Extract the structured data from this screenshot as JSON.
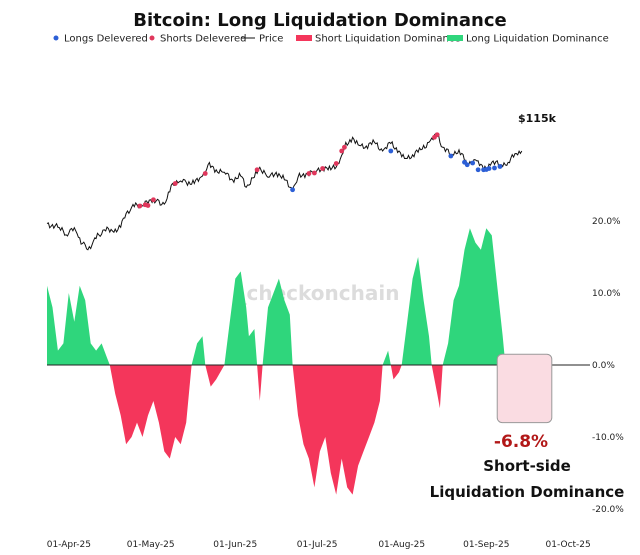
{
  "chart_data": {
    "type": "area",
    "title": "Bitcoin: Long Liquidation Dominance",
    "legend": [
      {
        "label": "Longs Delevered",
        "kind": "dot",
        "color": "#2c5fd6"
      },
      {
        "label": "Shorts Delevered",
        "kind": "dot",
        "color": "#e0375c"
      },
      {
        "label": "Price",
        "kind": "line",
        "color": "#111111"
      },
      {
        "label": "Short Liquidation Dominance",
        "kind": "bar",
        "color": "#f4365b"
      },
      {
        "label": "Long Liquidation Dominance",
        "kind": "bar",
        "color": "#2fd67c"
      }
    ],
    "legend_position": "top",
    "watermark": "_checkonchain",
    "x_axis": {
      "ticks": [
        "01-Apr-25",
        "01-May-25",
        "01-Jun-25",
        "01-Jul-25",
        "01-Aug-25",
        "01-Sep-25",
        "01-Oct-25"
      ],
      "range": [
        "2025-03-24",
        "2025-10-09"
      ]
    },
    "y_axis_right": {
      "ticks": [
        "20.0%",
        "10.0%",
        "0.0%",
        "-10.0%",
        "-20.0%"
      ],
      "range": [
        -22,
        22
      ]
    },
    "price_label": "$115k",
    "colors": {
      "long": "#2fd67c",
      "short": "#f4365b",
      "price": "#111111",
      "longs_dot": "#2c5fd6",
      "shorts_dot": "#e0375c"
    },
    "series": [
      {
        "name": "Price",
        "unit": "USD",
        "points": [
          [
            "2025-03-24",
            87000
          ],
          [
            "2025-03-28",
            85500
          ],
          [
            "2025-03-31",
            82500
          ],
          [
            "2025-04-02",
            85000
          ],
          [
            "2025-04-04",
            83000
          ],
          [
            "2025-04-06",
            79000
          ],
          [
            "2025-04-08",
            76500
          ],
          [
            "2025-04-10",
            80000
          ],
          [
            "2025-04-12",
            82500
          ],
          [
            "2025-04-14",
            84500
          ],
          [
            "2025-04-17",
            84000
          ],
          [
            "2025-04-20",
            85500
          ],
          [
            "2025-04-22",
            91000
          ],
          [
            "2025-04-24",
            93500
          ],
          [
            "2025-04-26",
            94500
          ],
          [
            "2025-04-28",
            94000
          ],
          [
            "2025-05-01",
            96500
          ],
          [
            "2025-05-03",
            96000
          ],
          [
            "2025-05-05",
            94500
          ],
          [
            "2025-05-07",
            97000
          ],
          [
            "2025-05-09",
            103000
          ],
          [
            "2025-05-12",
            104000
          ],
          [
            "2025-05-14",
            103500
          ],
          [
            "2025-05-17",
            103000
          ],
          [
            "2025-05-20",
            106000
          ],
          [
            "2025-05-22",
            110500
          ],
          [
            "2025-05-25",
            108500
          ],
          [
            "2025-05-28",
            107500
          ],
          [
            "2025-05-31",
            104500
          ],
          [
            "2025-06-03",
            106000
          ],
          [
            "2025-06-05",
            101500
          ],
          [
            "2025-06-08",
            105500
          ],
          [
            "2025-06-10",
            109500
          ],
          [
            "2025-06-13",
            105500
          ],
          [
            "2025-06-16",
            107500
          ],
          [
            "2025-06-19",
            104500
          ],
          [
            "2025-06-22",
            100500
          ],
          [
            "2025-06-24",
            105500
          ],
          [
            "2025-06-27",
            107000
          ],
          [
            "2025-06-30",
            107500
          ],
          [
            "2025-07-03",
            109500
          ],
          [
            "2025-07-06",
            108500
          ],
          [
            "2025-07-09",
            111000
          ],
          [
            "2025-07-11",
            117500
          ],
          [
            "2025-07-14",
            121500
          ],
          [
            "2025-07-16",
            118500
          ],
          [
            "2025-07-19",
            118000
          ],
          [
            "2025-07-22",
            119500
          ],
          [
            "2025-07-25",
            116000
          ],
          [
            "2025-07-28",
            119000
          ],
          [
            "2025-07-31",
            116000
          ],
          [
            "2025-08-02",
            113000
          ],
          [
            "2025-08-05",
            114500
          ],
          [
            "2025-08-08",
            116500
          ],
          [
            "2025-08-11",
            119500
          ],
          [
            "2025-08-14",
            122500
          ],
          [
            "2025-08-16",
            117500
          ],
          [
            "2025-08-19",
            114500
          ],
          [
            "2025-08-22",
            116500
          ],
          [
            "2025-08-25",
            110500
          ],
          [
            "2025-08-28",
            112500
          ],
          [
            "2025-08-31",
            108500
          ],
          [
            "2025-09-03",
            111500
          ],
          [
            "2025-09-06",
            110500
          ],
          [
            "2025-09-09",
            111500
          ],
          [
            "2025-09-12",
            115000
          ],
          [
            "2025-09-14",
            116000
          ]
        ]
      },
      {
        "name": "Long Liquidation Dominance",
        "unit": "%",
        "points": [
          [
            "2025-03-24",
            11
          ],
          [
            "2025-03-26",
            8
          ],
          [
            "2025-03-28",
            2
          ],
          [
            "2025-03-30",
            3
          ],
          [
            "2025-04-01",
            10
          ],
          [
            "2025-04-03",
            6
          ],
          [
            "2025-04-05",
            11
          ],
          [
            "2025-04-07",
            9
          ],
          [
            "2025-04-09",
            3
          ],
          [
            "2025-04-11",
            2
          ],
          [
            "2025-04-13",
            3
          ],
          [
            "2025-04-15",
            1
          ],
          [
            "2025-04-16",
            0
          ],
          [
            "2025-05-16",
            0
          ],
          [
            "2025-05-18",
            3
          ],
          [
            "2025-05-20",
            4
          ],
          [
            "2025-05-21",
            0
          ],
          [
            "2025-05-28",
            0
          ],
          [
            "2025-05-30",
            6
          ],
          [
            "2025-06-01",
            12
          ],
          [
            "2025-06-03",
            13
          ],
          [
            "2025-06-05",
            8
          ],
          [
            "2025-06-06",
            4
          ],
          [
            "2025-06-08",
            5
          ],
          [
            "2025-06-09",
            0
          ],
          [
            "2025-06-11",
            0
          ],
          [
            "2025-06-13",
            8
          ],
          [
            "2025-06-15",
            10
          ],
          [
            "2025-06-17",
            12
          ],
          [
            "2025-06-19",
            9
          ],
          [
            "2025-06-21",
            7
          ],
          [
            "2025-06-22",
            0
          ],
          [
            "2025-07-25",
            0
          ],
          [
            "2025-07-27",
            2
          ],
          [
            "2025-07-28",
            0
          ],
          [
            "2025-08-01",
            0
          ],
          [
            "2025-08-03",
            6
          ],
          [
            "2025-08-05",
            12
          ],
          [
            "2025-08-07",
            15
          ],
          [
            "2025-08-09",
            9
          ],
          [
            "2025-08-11",
            4
          ],
          [
            "2025-08-12",
            0
          ],
          [
            "2025-08-16",
            0
          ],
          [
            "2025-08-18",
            3
          ],
          [
            "2025-08-20",
            9
          ],
          [
            "2025-08-22",
            11
          ],
          [
            "2025-08-24",
            16
          ],
          [
            "2025-08-26",
            19
          ],
          [
            "2025-08-28",
            17
          ],
          [
            "2025-08-30",
            16
          ],
          [
            "2025-09-01",
            19
          ],
          [
            "2025-09-03",
            18
          ],
          [
            "2025-09-05",
            11
          ],
          [
            "2025-09-07",
            4
          ],
          [
            "2025-09-08",
            0
          ]
        ]
      },
      {
        "name": "Short Liquidation Dominance",
        "unit": "%",
        "points": [
          [
            "2025-04-16",
            0
          ],
          [
            "2025-04-18",
            -4
          ],
          [
            "2025-04-20",
            -7
          ],
          [
            "2025-04-22",
            -11
          ],
          [
            "2025-04-24",
            -10
          ],
          [
            "2025-04-26",
            -8
          ],
          [
            "2025-04-28",
            -10
          ],
          [
            "2025-04-30",
            -7
          ],
          [
            "2025-05-02",
            -5
          ],
          [
            "2025-05-04",
            -8
          ],
          [
            "2025-05-06",
            -12
          ],
          [
            "2025-05-08",
            -13
          ],
          [
            "2025-05-10",
            -10
          ],
          [
            "2025-05-12",
            -11
          ],
          [
            "2025-05-14",
            -8
          ],
          [
            "2025-05-16",
            0
          ],
          [
            "2025-05-21",
            0
          ],
          [
            "2025-05-23",
            -3
          ],
          [
            "2025-05-25",
            -2
          ],
          [
            "2025-05-28",
            0
          ],
          [
            "2025-06-09",
            0
          ],
          [
            "2025-06-10",
            -5
          ],
          [
            "2025-06-11",
            0
          ],
          [
            "2025-06-22",
            0
          ],
          [
            "2025-06-24",
            -7
          ],
          [
            "2025-06-26",
            -11
          ],
          [
            "2025-06-28",
            -13
          ],
          [
            "2025-06-30",
            -17
          ],
          [
            "2025-07-02",
            -12
          ],
          [
            "2025-07-04",
            -10
          ],
          [
            "2025-07-06",
            -15
          ],
          [
            "2025-07-08",
            -18
          ],
          [
            "2025-07-10",
            -13
          ],
          [
            "2025-07-12",
            -17
          ],
          [
            "2025-07-14",
            -18
          ],
          [
            "2025-07-16",
            -14
          ],
          [
            "2025-07-18",
            -12
          ],
          [
            "2025-07-20",
            -10
          ],
          [
            "2025-07-22",
            -8
          ],
          [
            "2025-07-24",
            -5
          ],
          [
            "2025-07-25",
            0
          ],
          [
            "2025-07-28",
            0
          ],
          [
            "2025-07-29",
            -2
          ],
          [
            "2025-07-31",
            -1
          ],
          [
            "2025-08-01",
            0
          ],
          [
            "2025-08-12",
            0
          ],
          [
            "2025-08-14",
            -4
          ],
          [
            "2025-08-15",
            -6
          ],
          [
            "2025-08-16",
            0
          ],
          [
            "2025-09-08",
            0
          ],
          [
            "2025-09-09",
            -3
          ],
          [
            "2025-09-10",
            -6.8
          ],
          [
            "2025-09-11",
            -2
          ],
          [
            "2025-09-12",
            0
          ]
        ]
      },
      {
        "name": "Shorts Delevered",
        "unit": "USD",
        "points": [
          [
            "2025-04-27",
            94000
          ],
          [
            "2025-04-29",
            94500
          ],
          [
            "2025-04-30",
            94200
          ],
          [
            "2025-05-02",
            96500
          ],
          [
            "2025-05-10",
            103000
          ],
          [
            "2025-05-21",
            107000
          ],
          [
            "2025-06-09",
            108500
          ],
          [
            "2025-06-28",
            107000
          ],
          [
            "2025-06-30",
            107200
          ],
          [
            "2025-07-03",
            109000
          ],
          [
            "2025-07-08",
            111000
          ],
          [
            "2025-07-10",
            116000
          ],
          [
            "2025-07-11",
            117500
          ],
          [
            "2025-08-13",
            121500
          ],
          [
            "2025-08-14",
            122500
          ]
        ]
      },
      {
        "name": "Longs Delevered",
        "unit": "USD",
        "points": [
          [
            "2025-06-22",
            100500
          ],
          [
            "2025-07-28",
            116000
          ],
          [
            "2025-08-19",
            114000
          ],
          [
            "2025-08-24",
            111500
          ],
          [
            "2025-08-25",
            110500
          ],
          [
            "2025-08-27",
            111200
          ],
          [
            "2025-08-29",
            108500
          ],
          [
            "2025-08-31",
            108500
          ],
          [
            "2025-09-01",
            108600
          ],
          [
            "2025-09-02",
            109000
          ],
          [
            "2025-09-04",
            109200
          ],
          [
            "2025-09-06",
            109800
          ]
        ]
      }
    ],
    "annotation": {
      "value": "-6.8%",
      "text_line1": "Short-side",
      "text_line2": "Liquidation Dominance",
      "highlight_range": [
        "2025-09-05",
        "2025-09-25"
      ]
    }
  }
}
